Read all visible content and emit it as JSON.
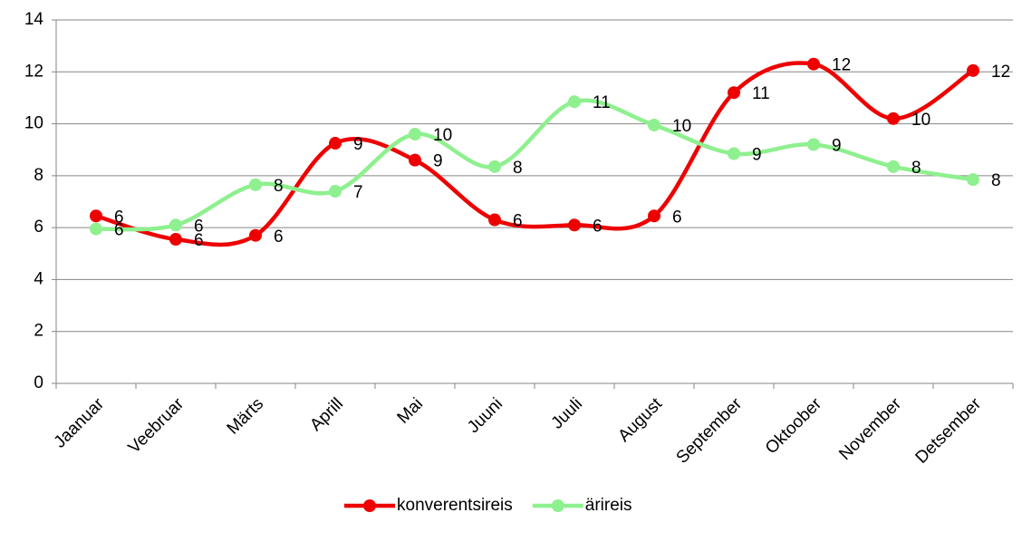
{
  "chart_data": {
    "type": "line",
    "smooth": true,
    "categories": [
      "Jaanuar",
      "Veebruar",
      "Märts",
      "Aprill",
      "Mai",
      "Juuni",
      "Juuli",
      "August",
      "September",
      "Oktoober",
      "November",
      "Detsember"
    ],
    "series": [
      {
        "name": "konverentsireis",
        "color": "#ee0000",
        "values": [
          6.45,
          5.55,
          5.7,
          9.25,
          8.6,
          6.3,
          6.1,
          6.45,
          11.2,
          12.3,
          10.2,
          12.05
        ],
        "value_labels": [
          "6",
          "6",
          "6",
          "9",
          "9",
          "6",
          "6",
          "6",
          "11",
          "12",
          "10",
          "12"
        ]
      },
      {
        "name": "ärireis",
        "color": "#8ef08e",
        "values": [
          5.95,
          6.1,
          7.65,
          7.4,
          9.6,
          8.35,
          10.85,
          9.95,
          8.85,
          9.2,
          8.35,
          7.85
        ],
        "value_labels": [
          "6",
          "6",
          "8",
          "7",
          "10",
          "8",
          "11",
          "10",
          "9",
          "9",
          "8",
          "8"
        ]
      }
    ],
    "ylim": [
      0,
      14
    ],
    "yticks": [
      0,
      2,
      4,
      6,
      8,
      10,
      12,
      14
    ],
    "grid": true,
    "legend": "bottom"
  }
}
